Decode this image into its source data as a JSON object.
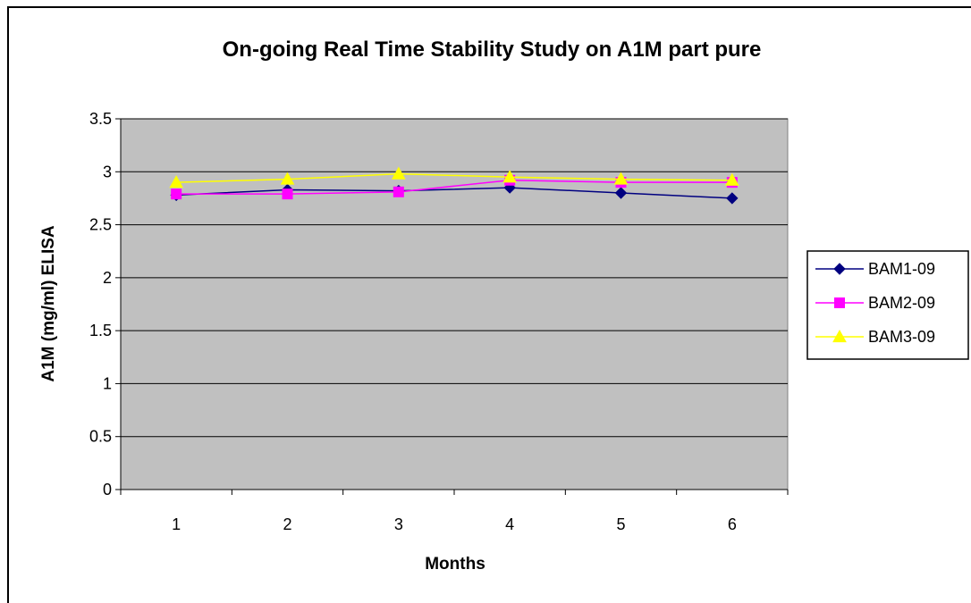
{
  "chart_data": {
    "type": "line",
    "title": "On-going Real Time Stability Study on A1M part pure",
    "xlabel": "Months",
    "ylabel": "A1M (mg/ml) ELISA",
    "categories": [
      "1",
      "2",
      "3",
      "4",
      "5",
      "6"
    ],
    "ylim": [
      0,
      3.5
    ],
    "yticks": [
      "0",
      "0.5",
      "1",
      "1.5",
      "2",
      "2.5",
      "3",
      "3.5"
    ],
    "grid": true,
    "legend_position": "right",
    "plot_background": "#c0c0c0",
    "series": [
      {
        "name": "BAM1-09",
        "color": "#000080",
        "marker": "diamond",
        "values": [
          2.78,
          2.83,
          2.82,
          2.85,
          2.8,
          2.75
        ]
      },
      {
        "name": "BAM2-09",
        "color": "#ff00ff",
        "marker": "square",
        "values": [
          2.79,
          2.79,
          2.81,
          2.92,
          2.9,
          2.9
        ]
      },
      {
        "name": "BAM3-09",
        "color": "#ffff00",
        "marker": "triangle",
        "values": [
          2.9,
          2.93,
          2.98,
          2.95,
          2.93,
          2.92
        ]
      }
    ]
  }
}
